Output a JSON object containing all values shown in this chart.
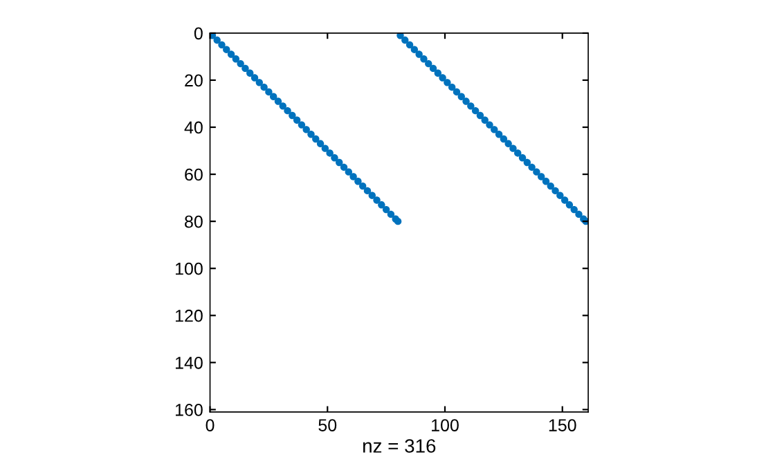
{
  "chart_data": {
    "type": "scatter",
    "xlabel": "nz = 316",
    "xlim": [
      0,
      161
    ],
    "ylim": [
      161,
      0
    ],
    "xticks": [
      0,
      50,
      100,
      150
    ],
    "yticks": [
      0,
      20,
      40,
      60,
      80,
      100,
      120,
      140,
      160
    ],
    "marker": "circle",
    "grid": false,
    "legend": false,
    "series": [
      {
        "color": "#0072bd",
        "x": [
          1,
          3,
          5,
          7,
          9,
          11,
          13,
          15,
          17,
          19,
          21,
          23,
          25,
          27,
          29,
          31,
          33,
          35,
          37,
          39,
          41,
          43,
          45,
          47,
          49,
          51,
          53,
          55,
          57,
          59,
          61,
          63,
          65,
          67,
          69,
          71,
          73,
          75,
          77,
          79,
          80
        ],
        "values": [
          1,
          3,
          5,
          7,
          9,
          11,
          13,
          15,
          17,
          19,
          21,
          23,
          25,
          27,
          29,
          31,
          33,
          35,
          37,
          39,
          41,
          43,
          45,
          47,
          49,
          51,
          53,
          55,
          57,
          59,
          61,
          63,
          65,
          67,
          69,
          71,
          73,
          75,
          77,
          79,
          80
        ]
      },
      {
        "color": "#0072bd",
        "x": [
          81,
          83,
          85,
          87,
          89,
          91,
          93,
          95,
          97,
          99,
          101,
          103,
          105,
          107,
          109,
          111,
          113,
          115,
          117,
          119,
          121,
          123,
          125,
          127,
          129,
          131,
          133,
          135,
          137,
          139,
          141,
          143,
          145,
          147,
          149,
          151,
          153,
          155,
          157,
          159,
          160
        ],
        "values": [
          1,
          3,
          5,
          7,
          9,
          11,
          13,
          15,
          17,
          19,
          21,
          23,
          25,
          27,
          29,
          31,
          33,
          35,
          37,
          39,
          41,
          43,
          45,
          47,
          49,
          51,
          53,
          55,
          57,
          59,
          61,
          63,
          65,
          67,
          69,
          71,
          73,
          75,
          77,
          79,
          80
        ]
      }
    ]
  }
}
